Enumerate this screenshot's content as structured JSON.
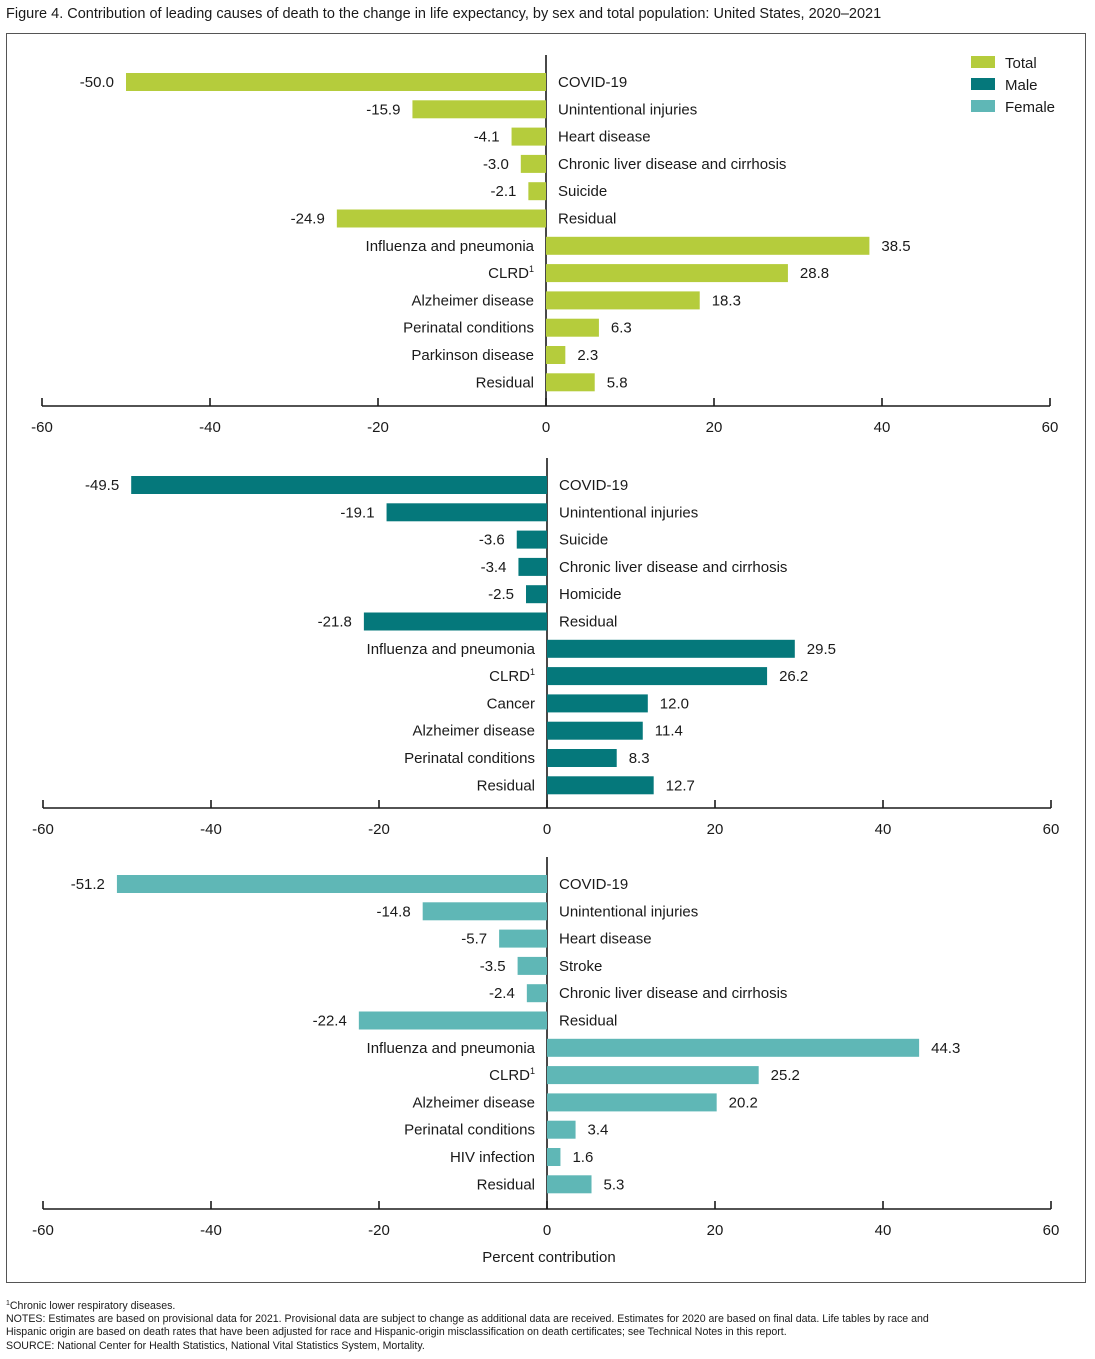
{
  "title": "Figure 4. Contribution of leading causes of death to the change in life expectancy, by sex and total population: United States, 2020–2021",
  "colors": {
    "Total": "#b5cc3c",
    "Male": "#05787b",
    "Female": "#5fb7b6",
    "axis": "#1a1a1a"
  },
  "chart_data": {
    "type": "bar",
    "orientation": "horizontal",
    "xlabel": "Percent contribution",
    "xlim": [
      -60,
      60
    ],
    "xticks": [
      -60,
      -40,
      -20,
      0,
      20,
      40,
      60
    ],
    "legend": {
      "placement": "top-right",
      "entries": [
        "Total",
        "Male",
        "Female"
      ]
    },
    "panels": [
      {
        "series": "Total",
        "bars": [
          {
            "label": "COVID-19",
            "value": -50.0,
            "value_label": "-50.0"
          },
          {
            "label": "Unintentional injuries",
            "value": -15.9,
            "value_label": "-15.9"
          },
          {
            "label": "Heart disease",
            "value": -4.1,
            "value_label": "-4.1"
          },
          {
            "label": "Chronic liver disease and cirrhosis",
            "value": -3.0,
            "value_label": "-3.0"
          },
          {
            "label": "Suicide",
            "value": -2.1,
            "value_label": "-2.1"
          },
          {
            "label": "Residual",
            "value": -24.9,
            "value_label": "-24.9"
          },
          {
            "label": "Influenza and pneumonia",
            "value": 38.5,
            "value_label": "38.5"
          },
          {
            "label": "CLRD",
            "sup": "1",
            "value": 28.8,
            "value_label": "28.8"
          },
          {
            "label": "Alzheimer disease",
            "value": 18.3,
            "value_label": "18.3"
          },
          {
            "label": "Perinatal conditions",
            "value": 6.3,
            "value_label": "6.3"
          },
          {
            "label": "Parkinson disease",
            "value": 2.3,
            "value_label": "2.3"
          },
          {
            "label": "Residual",
            "value": 5.8,
            "value_label": "5.8"
          }
        ]
      },
      {
        "series": "Male",
        "bars": [
          {
            "label": "COVID-19",
            "value": -49.5,
            "value_label": "-49.5"
          },
          {
            "label": "Unintentional injuries",
            "value": -19.1,
            "value_label": "-19.1"
          },
          {
            "label": "Suicide",
            "value": -3.6,
            "value_label": "-3.6"
          },
          {
            "label": "Chronic liver disease and cirrhosis",
            "value": -3.4,
            "value_label": "-3.4"
          },
          {
            "label": "Homicide",
            "value": -2.5,
            "value_label": "-2.5"
          },
          {
            "label": "Residual",
            "value": -21.8,
            "value_label": "-21.8"
          },
          {
            "label": "Influenza and pneumonia",
            "value": 29.5,
            "value_label": "29.5"
          },
          {
            "label": "CLRD",
            "sup": "1",
            "value": 26.2,
            "value_label": "26.2"
          },
          {
            "label": "Cancer",
            "value": 12.0,
            "value_label": "12.0"
          },
          {
            "label": "Alzheimer disease",
            "value": 11.4,
            "value_label": "11.4"
          },
          {
            "label": "Perinatal conditions",
            "value": 8.3,
            "value_label": "8.3"
          },
          {
            "label": "Residual",
            "value": 12.7,
            "value_label": "12.7"
          }
        ]
      },
      {
        "series": "Female",
        "bars": [
          {
            "label": "COVID-19",
            "value": -51.2,
            "value_label": "-51.2"
          },
          {
            "label": "Unintentional injuries",
            "value": -14.8,
            "value_label": "-14.8"
          },
          {
            "label": "Heart disease",
            "value": -5.7,
            "value_label": "-5.7"
          },
          {
            "label": "Stroke",
            "value": -3.5,
            "value_label": "-3.5"
          },
          {
            "label": "Chronic liver disease and cirrhosis",
            "value": -2.4,
            "value_label": "-2.4"
          },
          {
            "label": "Residual",
            "value": -22.4,
            "value_label": "-22.4"
          },
          {
            "label": "Influenza and pneumonia",
            "value": 44.3,
            "value_label": "44.3"
          },
          {
            "label": "CLRD",
            "sup": "1",
            "value": 25.2,
            "value_label": "25.2"
          },
          {
            "label": "Alzheimer disease",
            "value": 20.2,
            "value_label": "20.2"
          },
          {
            "label": "Perinatal conditions",
            "value": 3.4,
            "value_label": "3.4"
          },
          {
            "label": "HIV infection",
            "value": 1.6,
            "value_label": "1.6"
          },
          {
            "label": "Residual",
            "value": 5.3,
            "value_label": "5.3"
          }
        ]
      }
    ]
  },
  "notes": {
    "footnote_marker": "1",
    "footnote": "Chronic lower respiratory diseases.",
    "notes_line1": "NOTES: Estimates are based on provisional data for 2021. Provisional data are subject to change as additional data are received. Estimates for 2020 are based on final data. Life tables by race and",
    "notes_line2": "Hispanic origin are based on death rates that have been adjusted for race and Hispanic-origin misclassification on death certificates; see Technical Notes in this report.",
    "source": "SOURCE: National Center for Health Statistics, National Vital Statistics System, Mortality."
  }
}
